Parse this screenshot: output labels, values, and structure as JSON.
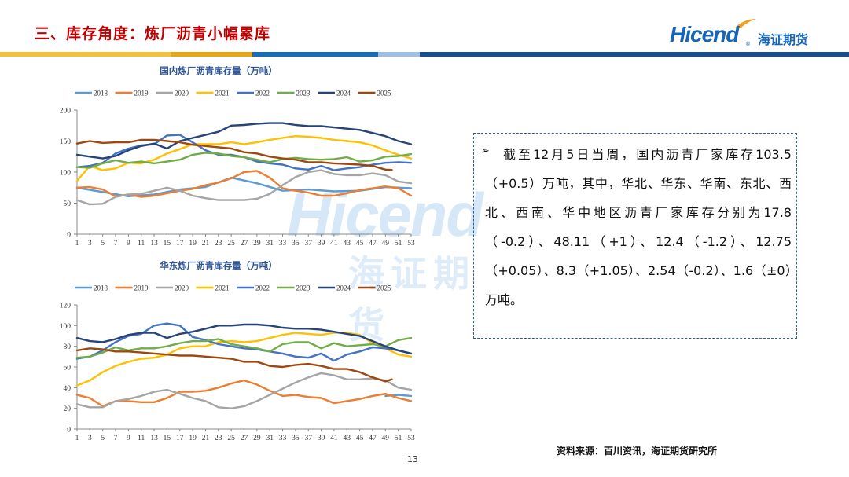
{
  "slide": {
    "title": "三、库存角度：炼厂沥青小幅累库",
    "page_number": "13",
    "source": "资料来源：百川资讯，海证期货研究所"
  },
  "logo": {
    "text_en": "Hicend",
    "reg": "®",
    "text_cn": "海证期货",
    "color": "#1565b8"
  },
  "watermark": {
    "text_en": "Hicend",
    "text_cn": "海证期货"
  },
  "colors": {
    "title": "#c00000",
    "bar_segments": [
      "#f3c23c",
      "#e6a817",
      "#1b6cb8",
      "#9fbfe0",
      "#1b4f8c"
    ]
  },
  "textbox": {
    "bullet": "➢",
    "text": "截至12月5日当周，国内沥青厂家库存103.5（+0.5）万吨，其中，华北、华东、华南、东北、西北、西南、华中地区沥青厂家库存分别为17.8（-0.2）、48.11（+1）、12.4（-1.2）、12.75（+0.05）、8.3（+1.05）、2.54（-0.2）、1.6（±0）万吨。"
  },
  "chart_data": [
    {
      "type": "line",
      "title": "国内炼厂沥青库存量（万吨）",
      "xlabel": "",
      "ylabel": "",
      "x_ticks": [
        "1",
        "3",
        "5",
        "7",
        "9",
        "11",
        "13",
        "15",
        "17",
        "19",
        "21",
        "23",
        "25",
        "27",
        "29",
        "31",
        "33",
        "35",
        "37",
        "39",
        "41",
        "43",
        "45",
        "47",
        "49",
        "51",
        "53"
      ],
      "xlim": [
        1,
        53
      ],
      "ylim": [
        0,
        200
      ],
      "y_ticks": [
        0,
        50,
        100,
        150,
        200
      ],
      "grid": false,
      "legend": "top",
      "series": [
        {
          "name": "2018",
          "color": "#5b9bd5",
          "x": [
            1,
            5,
            9,
            13,
            17,
            21,
            25,
            29,
            33,
            37,
            41,
            45,
            49,
            53
          ],
          "y": [
            75,
            68,
            61,
            64,
            72,
            76,
            91,
            82,
            70,
            72,
            69,
            70,
            76,
            74
          ]
        },
        {
          "name": "2019",
          "color": "#ed7d31",
          "x": [
            1,
            3,
            5,
            7,
            9,
            11,
            13,
            15,
            17,
            19,
            21,
            23,
            25,
            27,
            29,
            31,
            33,
            35,
            37,
            39,
            41,
            43,
            45,
            47,
            49,
            51,
            53
          ],
          "y": [
            75,
            76,
            72,
            61,
            64,
            60,
            62,
            66,
            70,
            73,
            79,
            83,
            90,
            100,
            102,
            91,
            74,
            70,
            67,
            62,
            62,
            66,
            71,
            74,
            77,
            74,
            62
          ]
        },
        {
          "name": "2020",
          "color": "#a5a5a5",
          "x": [
            1,
            3,
            5,
            7,
            9,
            11,
            13,
            15,
            17,
            19,
            21,
            23,
            25,
            27,
            29,
            31,
            33,
            35,
            37,
            39,
            41,
            43,
            45,
            47,
            49,
            51,
            53
          ],
          "y": [
            55,
            48,
            49,
            60,
            64,
            65,
            70,
            75,
            70,
            62,
            58,
            55,
            55,
            55,
            57,
            65,
            79,
            92,
            100,
            103,
            97,
            95,
            95,
            98,
            95,
            85,
            82
          ]
        },
        {
          "name": "2021",
          "color": "#ffc000",
          "x": [
            1,
            3,
            5,
            7,
            9,
            11,
            13,
            15,
            17,
            19,
            21,
            23,
            25,
            27,
            29,
            31,
            33,
            35,
            37,
            39,
            41,
            43,
            45,
            47,
            49,
            51,
            53
          ],
          "y": [
            86,
            110,
            103,
            106,
            115,
            114,
            120,
            130,
            137,
            145,
            145,
            145,
            148,
            145,
            148,
            152,
            155,
            158,
            157,
            155,
            152,
            150,
            148,
            143,
            135,
            128,
            122
          ]
        },
        {
          "name": "2022",
          "color": "#4472c4",
          "x": [
            1,
            3,
            5,
            7,
            9,
            11,
            13,
            15,
            17,
            19,
            21,
            23,
            25,
            27,
            29,
            31,
            33,
            35,
            37,
            39,
            41,
            43,
            45,
            47,
            49,
            51,
            53
          ],
          "y": [
            108,
            110,
            115,
            130,
            138,
            143,
            145,
            159,
            160,
            148,
            135,
            128,
            128,
            124,
            117,
            114,
            112,
            106,
            104,
            110,
            103,
            106,
            108,
            112,
            115,
            116,
            115
          ]
        },
        {
          "name": "2023",
          "color": "#70ad47",
          "x": [
            1,
            3,
            5,
            7,
            9,
            11,
            13,
            15,
            17,
            19,
            21,
            23,
            25,
            27,
            29,
            31,
            33,
            35,
            37,
            39,
            41,
            43,
            45,
            47,
            49,
            51,
            53
          ],
          "y": [
            108,
            107,
            114,
            119,
            115,
            117,
            114,
            117,
            120,
            128,
            131,
            130,
            126,
            124,
            120,
            116,
            121,
            123,
            121,
            120,
            121,
            124,
            117,
            119,
            125,
            126,
            129
          ]
        },
        {
          "name": "2024",
          "color": "#264478",
          "x": [
            1,
            3,
            5,
            7,
            9,
            11,
            13,
            15,
            17,
            19,
            21,
            23,
            25,
            27,
            29,
            31,
            33,
            35,
            37,
            39,
            41,
            43,
            45,
            47,
            49,
            51,
            53
          ],
          "y": [
            128,
            125,
            122,
            126,
            135,
            142,
            146,
            138,
            150,
            155,
            160,
            165,
            175,
            176,
            178,
            179,
            179,
            176,
            174,
            174,
            172,
            170,
            168,
            163,
            158,
            150,
            145
          ]
        },
        {
          "name": "2025",
          "color": "#9e480e",
          "x": [
            1,
            3,
            5,
            7,
            9,
            11,
            13,
            15,
            17,
            19,
            21,
            23,
            25,
            27,
            29,
            31,
            33,
            35,
            37,
            39,
            41,
            43,
            45,
            47,
            49,
            50
          ],
          "y": [
            146,
            150,
            147,
            148,
            148,
            152,
            152,
            150,
            148,
            144,
            142,
            140,
            138,
            132,
            130,
            125,
            122,
            120,
            116,
            116,
            114,
            113,
            112,
            110,
            104,
            103.5
          ]
        }
      ]
    },
    {
      "type": "line",
      "title": "华东炼厂沥青库存量（万吨）",
      "xlabel": "",
      "ylabel": "",
      "x_ticks": [
        "1",
        "3",
        "5",
        "7",
        "9",
        "11",
        "13",
        "15",
        "17",
        "19",
        "21",
        "23",
        "25",
        "27",
        "29",
        "31",
        "33",
        "35",
        "37",
        "39",
        "41",
        "43",
        "45",
        "47",
        "49",
        "51",
        "53"
      ],
      "xlim": [
        1,
        53
      ],
      "ylim": [
        0,
        120
      ],
      "y_ticks": [
        0,
        20,
        40,
        60,
        80,
        100,
        120
      ],
      "grid": false,
      "legend": "top",
      "series": [
        {
          "name": "2018",
          "color": "#5b9bd5",
          "x": [
            49,
            51,
            53
          ],
          "y": [
            32,
            33,
            32
          ]
        },
        {
          "name": "2019",
          "color": "#ed7d31",
          "x": [
            1,
            3,
            5,
            7,
            9,
            11,
            13,
            15,
            17,
            19,
            21,
            23,
            25,
            27,
            29,
            31,
            33,
            35,
            37,
            39,
            41,
            43,
            45,
            47,
            49,
            51,
            53
          ],
          "y": [
            33,
            30,
            22,
            27,
            27,
            26,
            26,
            30,
            36,
            36,
            37,
            40,
            44,
            47,
            43,
            37,
            32,
            33,
            31,
            30,
            25,
            27,
            29,
            32,
            34,
            30,
            27
          ]
        },
        {
          "name": "2020",
          "color": "#a5a5a5",
          "x": [
            1,
            3,
            5,
            7,
            9,
            11,
            13,
            15,
            17,
            19,
            21,
            23,
            25,
            27,
            29,
            31,
            33,
            35,
            37,
            39,
            41,
            43,
            45,
            47,
            49,
            51,
            53
          ],
          "y": [
            24,
            21,
            21,
            27,
            29,
            32,
            36,
            38,
            34,
            30,
            27,
            21,
            20,
            22,
            27,
            33,
            39,
            45,
            50,
            54,
            52,
            48,
            48,
            49,
            47,
            40,
            38
          ]
        },
        {
          "name": "2021",
          "color": "#ffc000",
          "x": [
            1,
            3,
            5,
            7,
            9,
            11,
            13,
            15,
            17,
            19,
            21,
            23,
            25,
            27,
            29,
            31,
            33,
            35,
            37,
            39,
            41,
            43,
            45,
            47,
            49,
            51,
            53
          ],
          "y": [
            42,
            47,
            55,
            61,
            65,
            68,
            69,
            72,
            78,
            80,
            80,
            84,
            85,
            84,
            85,
            88,
            91,
            93,
            92,
            91,
            93,
            93,
            91,
            83,
            78,
            72,
            70
          ]
        },
        {
          "name": "2022",
          "color": "#4472c4",
          "x": [
            1,
            3,
            5,
            7,
            9,
            11,
            13,
            15,
            17,
            19,
            21,
            23,
            25,
            27,
            29,
            31,
            33,
            35,
            37,
            39,
            41,
            43,
            45,
            47,
            49,
            51,
            53
          ],
          "y": [
            68,
            70,
            76,
            84,
            90,
            92,
            100,
            102,
            100,
            89,
            86,
            82,
            80,
            78,
            77,
            75,
            73,
            70,
            69,
            73,
            66,
            72,
            75,
            79,
            78,
            76,
            73
          ]
        },
        {
          "name": "2023",
          "color": "#70ad47",
          "x": [
            1,
            3,
            5,
            7,
            9,
            11,
            13,
            15,
            17,
            19,
            21,
            23,
            25,
            27,
            29,
            31,
            33,
            35,
            37,
            39,
            41,
            43,
            45,
            47,
            49,
            51,
            53
          ],
          "y": [
            69,
            70,
            74,
            79,
            76,
            78,
            78,
            80,
            83,
            85,
            85,
            87,
            82,
            80,
            78,
            75,
            82,
            84,
            84,
            78,
            83,
            80,
            81,
            82,
            80,
            86,
            88
          ]
        },
        {
          "name": "2024",
          "color": "#264478",
          "x": [
            1,
            3,
            5,
            7,
            9,
            11,
            13,
            15,
            17,
            19,
            21,
            23,
            25,
            27,
            29,
            31,
            33,
            35,
            37,
            39,
            41,
            43,
            45,
            47,
            49,
            51,
            53
          ],
          "y": [
            88,
            85,
            84,
            87,
            91,
            93,
            93,
            88,
            92,
            94,
            97,
            100,
            100,
            101,
            101,
            100,
            98,
            97,
            97,
            96,
            94,
            92,
            90,
            85,
            80,
            76,
            73
          ]
        },
        {
          "name": "2025",
          "color": "#9e480e",
          "x": [
            1,
            3,
            5,
            7,
            9,
            11,
            13,
            15,
            17,
            19,
            21,
            23,
            25,
            27,
            29,
            31,
            33,
            35,
            37,
            39,
            41,
            43,
            45,
            47,
            49,
            50
          ],
          "y": [
            76,
            78,
            77,
            75,
            75,
            74,
            73,
            72,
            71,
            71,
            70,
            69,
            68,
            65,
            65,
            61,
            60,
            62,
            63,
            61,
            58,
            58,
            55,
            50,
            46,
            48.11
          ]
        }
      ]
    }
  ]
}
